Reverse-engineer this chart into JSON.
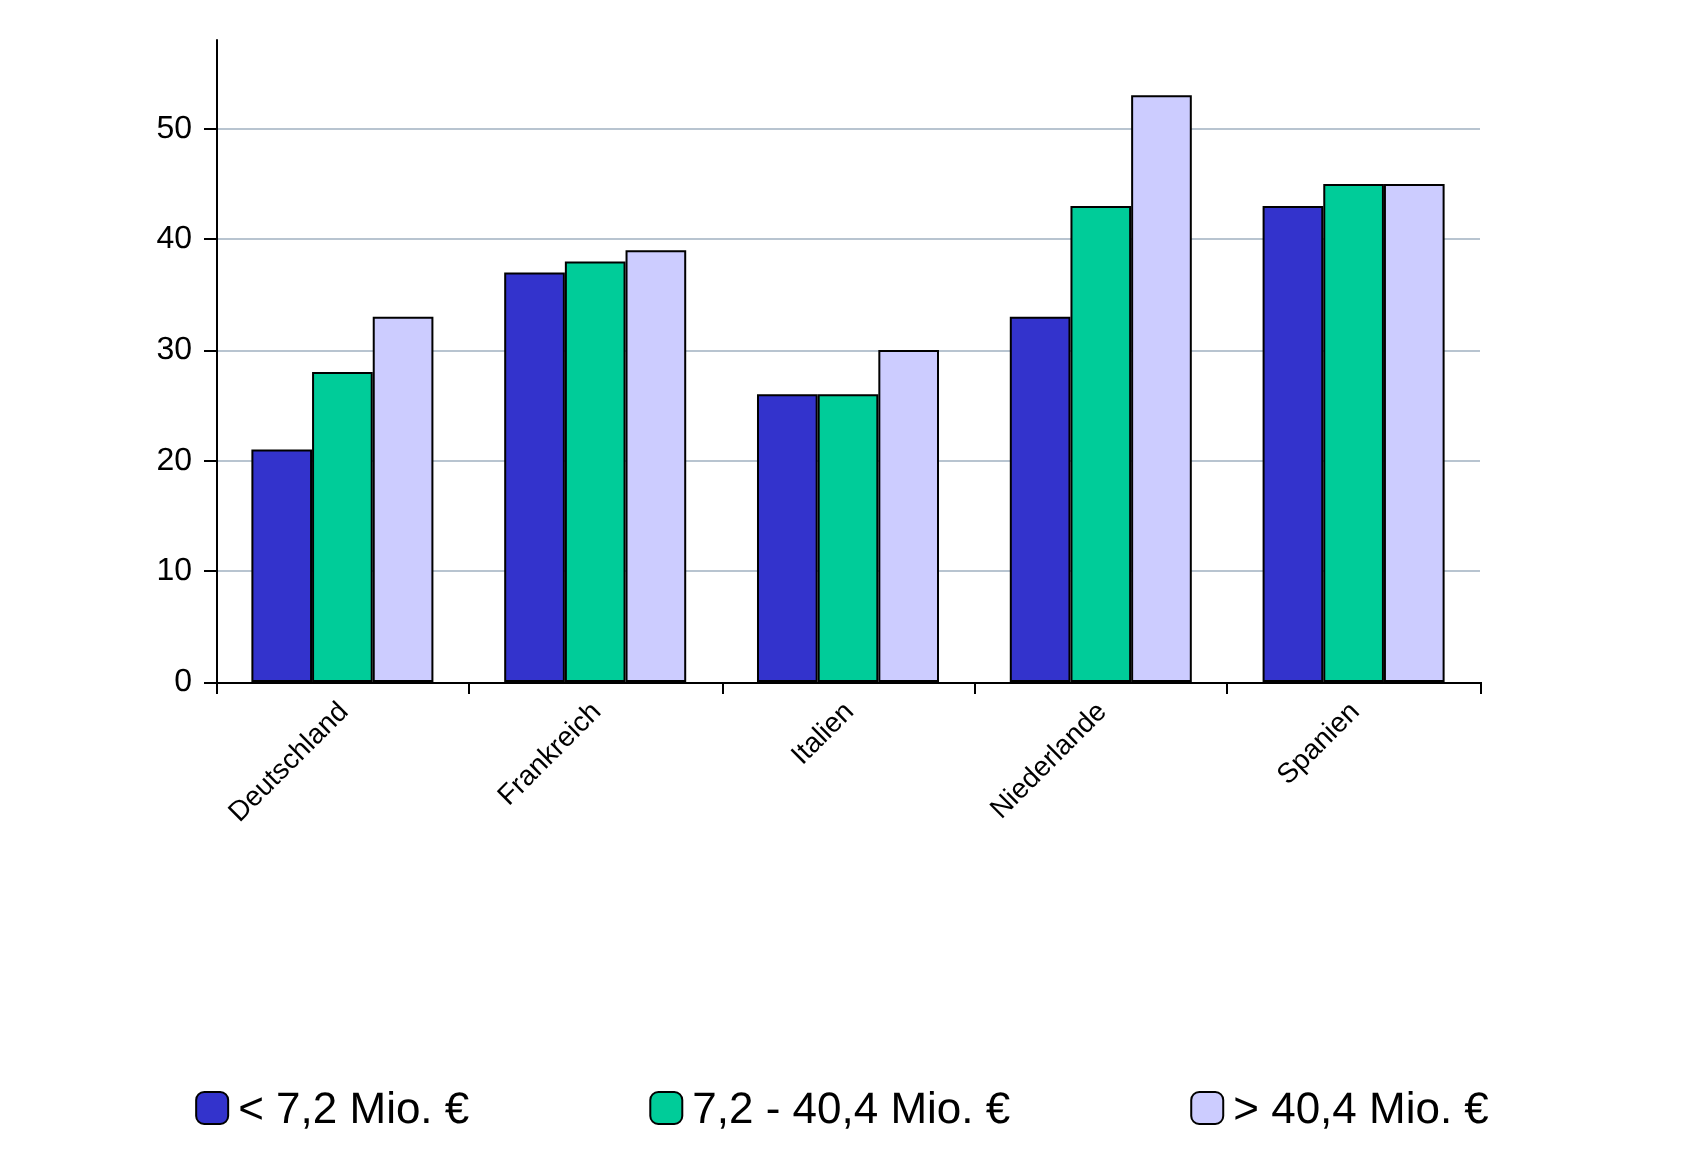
{
  "chart_data": {
    "type": "bar",
    "categories": [
      "Deutschland",
      "Frankreich",
      "Italien",
      "Niederlande",
      "Spanien"
    ],
    "series": [
      {
        "name": "< 7,2 Mio. €",
        "color": "#3333cc",
        "values": [
          21,
          37,
          26,
          33,
          43
        ]
      },
      {
        "name": "7,2 - 40,4 Mio. €",
        "color": "#00cc99",
        "values": [
          28,
          38,
          26,
          43,
          45
        ]
      },
      {
        "name": "> 40,4 Mio. €",
        "color": "#ccccff",
        "values": [
          33,
          39,
          30,
          53,
          45
        ]
      }
    ],
    "ylim": [
      0,
      58
    ],
    "yticks": [
      0,
      10,
      20,
      30,
      40,
      50
    ],
    "grid": "y",
    "legend": "bottom"
  }
}
